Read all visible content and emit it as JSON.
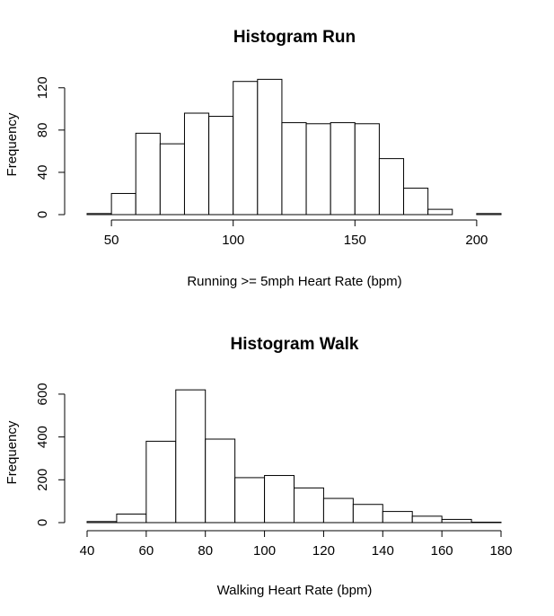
{
  "chart_data": [
    {
      "type": "bar",
      "title": "Histogram Run",
      "xlabel": "Running >= 5mph Heart Rate (bpm)",
      "ylabel": "Frequency",
      "xlim": [
        40,
        210
      ],
      "ylim": [
        0,
        130
      ],
      "xticks": [
        50,
        100,
        150,
        200
      ],
      "yticks": [
        0,
        40,
        80,
        120
      ],
      "bin_width": 10,
      "bins": [
        {
          "x0": 40,
          "x1": 50,
          "count": 1
        },
        {
          "x0": 50,
          "x1": 60,
          "count": 20
        },
        {
          "x0": 60,
          "x1": 70,
          "count": 77
        },
        {
          "x0": 70,
          "x1": 80,
          "count": 67
        },
        {
          "x0": 80,
          "x1": 90,
          "count": 96
        },
        {
          "x0": 90,
          "x1": 100,
          "count": 93
        },
        {
          "x0": 100,
          "x1": 110,
          "count": 126
        },
        {
          "x0": 110,
          "x1": 120,
          "count": 128
        },
        {
          "x0": 120,
          "x1": 130,
          "count": 87
        },
        {
          "x0": 130,
          "x1": 140,
          "count": 86
        },
        {
          "x0": 140,
          "x1": 150,
          "count": 87
        },
        {
          "x0": 150,
          "x1": 160,
          "count": 86
        },
        {
          "x0": 160,
          "x1": 170,
          "count": 53
        },
        {
          "x0": 170,
          "x1": 180,
          "count": 25
        },
        {
          "x0": 180,
          "x1": 190,
          "count": 5
        },
        {
          "x0": 190,
          "x1": 200,
          "count": 0
        },
        {
          "x0": 200,
          "x1": 210,
          "count": 1
        }
      ]
    },
    {
      "type": "bar",
      "title": "Histogram Walk",
      "xlabel": "Walking Heart Rate (bpm)",
      "ylabel": "Frequency",
      "xlim": [
        40,
        180
      ],
      "ylim": [
        0,
        650
      ],
      "xticks": [
        40,
        60,
        80,
        100,
        120,
        140,
        160,
        180
      ],
      "yticks": [
        0,
        200,
        400,
        600
      ],
      "bin_width": 10,
      "bins": [
        {
          "x0": 40,
          "x1": 50,
          "count": 5
        },
        {
          "x0": 50,
          "x1": 60,
          "count": 40
        },
        {
          "x0": 60,
          "x1": 70,
          "count": 380
        },
        {
          "x0": 70,
          "x1": 80,
          "count": 620
        },
        {
          "x0": 80,
          "x1": 90,
          "count": 390
        },
        {
          "x0": 90,
          "x1": 100,
          "count": 210
        },
        {
          "x0": 100,
          "x1": 110,
          "count": 220
        },
        {
          "x0": 110,
          "x1": 120,
          "count": 162
        },
        {
          "x0": 120,
          "x1": 130,
          "count": 113
        },
        {
          "x0": 130,
          "x1": 140,
          "count": 85
        },
        {
          "x0": 140,
          "x1": 150,
          "count": 52
        },
        {
          "x0": 150,
          "x1": 160,
          "count": 30
        },
        {
          "x0": 160,
          "x1": 170,
          "count": 15
        },
        {
          "x0": 170,
          "x1": 180,
          "count": 2
        }
      ]
    }
  ]
}
